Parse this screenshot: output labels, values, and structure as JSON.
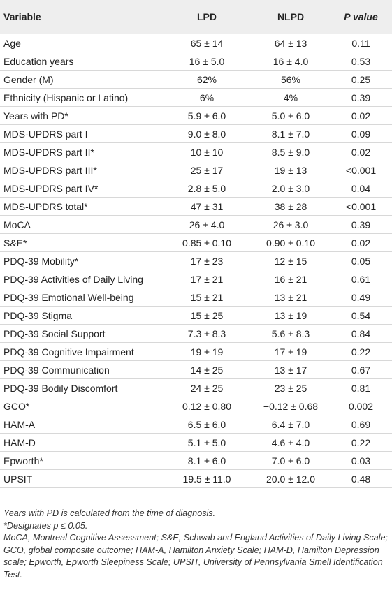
{
  "table": {
    "header": [
      "Variable",
      "LPD",
      "NLPD",
      "P value"
    ],
    "rows": [
      [
        "Age",
        "65 ± 14",
        "64 ± 13",
        "0.11"
      ],
      [
        "Education years",
        "16 ± 5.0",
        "16 ± 4.0",
        "0.53"
      ],
      [
        "Gender (M)",
        "62%",
        "56%",
        "0.25"
      ],
      [
        "Ethnicity (Hispanic or Latino)",
        "6%",
        "4%",
        "0.39"
      ],
      [
        "Years with PD*",
        "5.9 ± 6.0",
        "5.0 ± 6.0",
        "0.02"
      ],
      [
        "MDS-UPDRS part I",
        "9.0 ± 8.0",
        "8.1 ± 7.0",
        "0.09"
      ],
      [
        "MDS-UPDRS part II*",
        "10 ± 10",
        "8.5 ± 9.0",
        "0.02"
      ],
      [
        "MDS-UPDRS part III*",
        "25 ± 17",
        "19 ± 13",
        "<0.001"
      ],
      [
        "MDS-UPDRS part IV*",
        "2.8 ± 5.0",
        "2.0 ± 3.0",
        "0.04"
      ],
      [
        "MDS-UPDRS total*",
        "47 ± 31",
        "38 ± 28",
        "<0.001"
      ],
      [
        "MoCA",
        "26 ± 4.0",
        "26 ± 3.0",
        "0.39"
      ],
      [
        "S&E*",
        "0.85 ± 0.10",
        "0.90 ± 0.10",
        "0.02"
      ],
      [
        "PDQ-39 Mobility*",
        "17 ± 23",
        "12 ± 15",
        "0.05"
      ],
      [
        "PDQ-39 Activities of Daily Living",
        "17 ± 21",
        "16 ± 21",
        "0.61"
      ],
      [
        "PDQ-39 Emotional Well-being",
        "15 ± 21",
        "13 ± 21",
        "0.49"
      ],
      [
        "PDQ-39 Stigma",
        "15 ± 25",
        "13 ± 19",
        "0.54"
      ],
      [
        "PDQ-39 Social Support",
        "7.3 ± 8.3",
        "5.6 ± 8.3",
        "0.84"
      ],
      [
        "PDQ-39 Cognitive Impairment",
        "19 ± 19",
        "17 ± 19",
        "0.22"
      ],
      [
        "PDQ-39 Communication",
        "14 ± 25",
        "13 ± 17",
        "0.67"
      ],
      [
        "PDQ-39 Bodily Discomfort",
        "24 ± 25",
        "23 ± 25",
        "0.81"
      ],
      [
        "GCO*",
        "0.12 ± 0.80",
        "−0.12 ± 0.68",
        "0.002"
      ],
      [
        "HAM-A",
        "6.5 ± 6.0",
        "6.4 ± 7.0",
        "0.69"
      ],
      [
        "HAM-D",
        "5.1 ± 5.0",
        "4.6 ± 4.0",
        "0.22"
      ],
      [
        "Epworth*",
        "8.1 ± 6.0",
        "7.0 ± 6.0",
        "0.03"
      ],
      [
        "UPSIT",
        "19.5 ± 11.0",
        "20.0 ± 12.0",
        "0.48"
      ]
    ]
  },
  "footnotes": [
    "Years with PD is calculated from the time of diagnosis.",
    "*Designates p ≤ 0.05.",
    "MoCA, Montreal Cognitive Assessment; S&E, Schwab and England Activities of Daily Living Scale; GCO, global composite outcome; HAM-A, Hamilton Anxiety Scale; HAM-D, Hamilton Depression scale; Epworth, Epworth Sleepiness Scale; UPSIT, University of Pennsylvania Smell Identification Test."
  ]
}
